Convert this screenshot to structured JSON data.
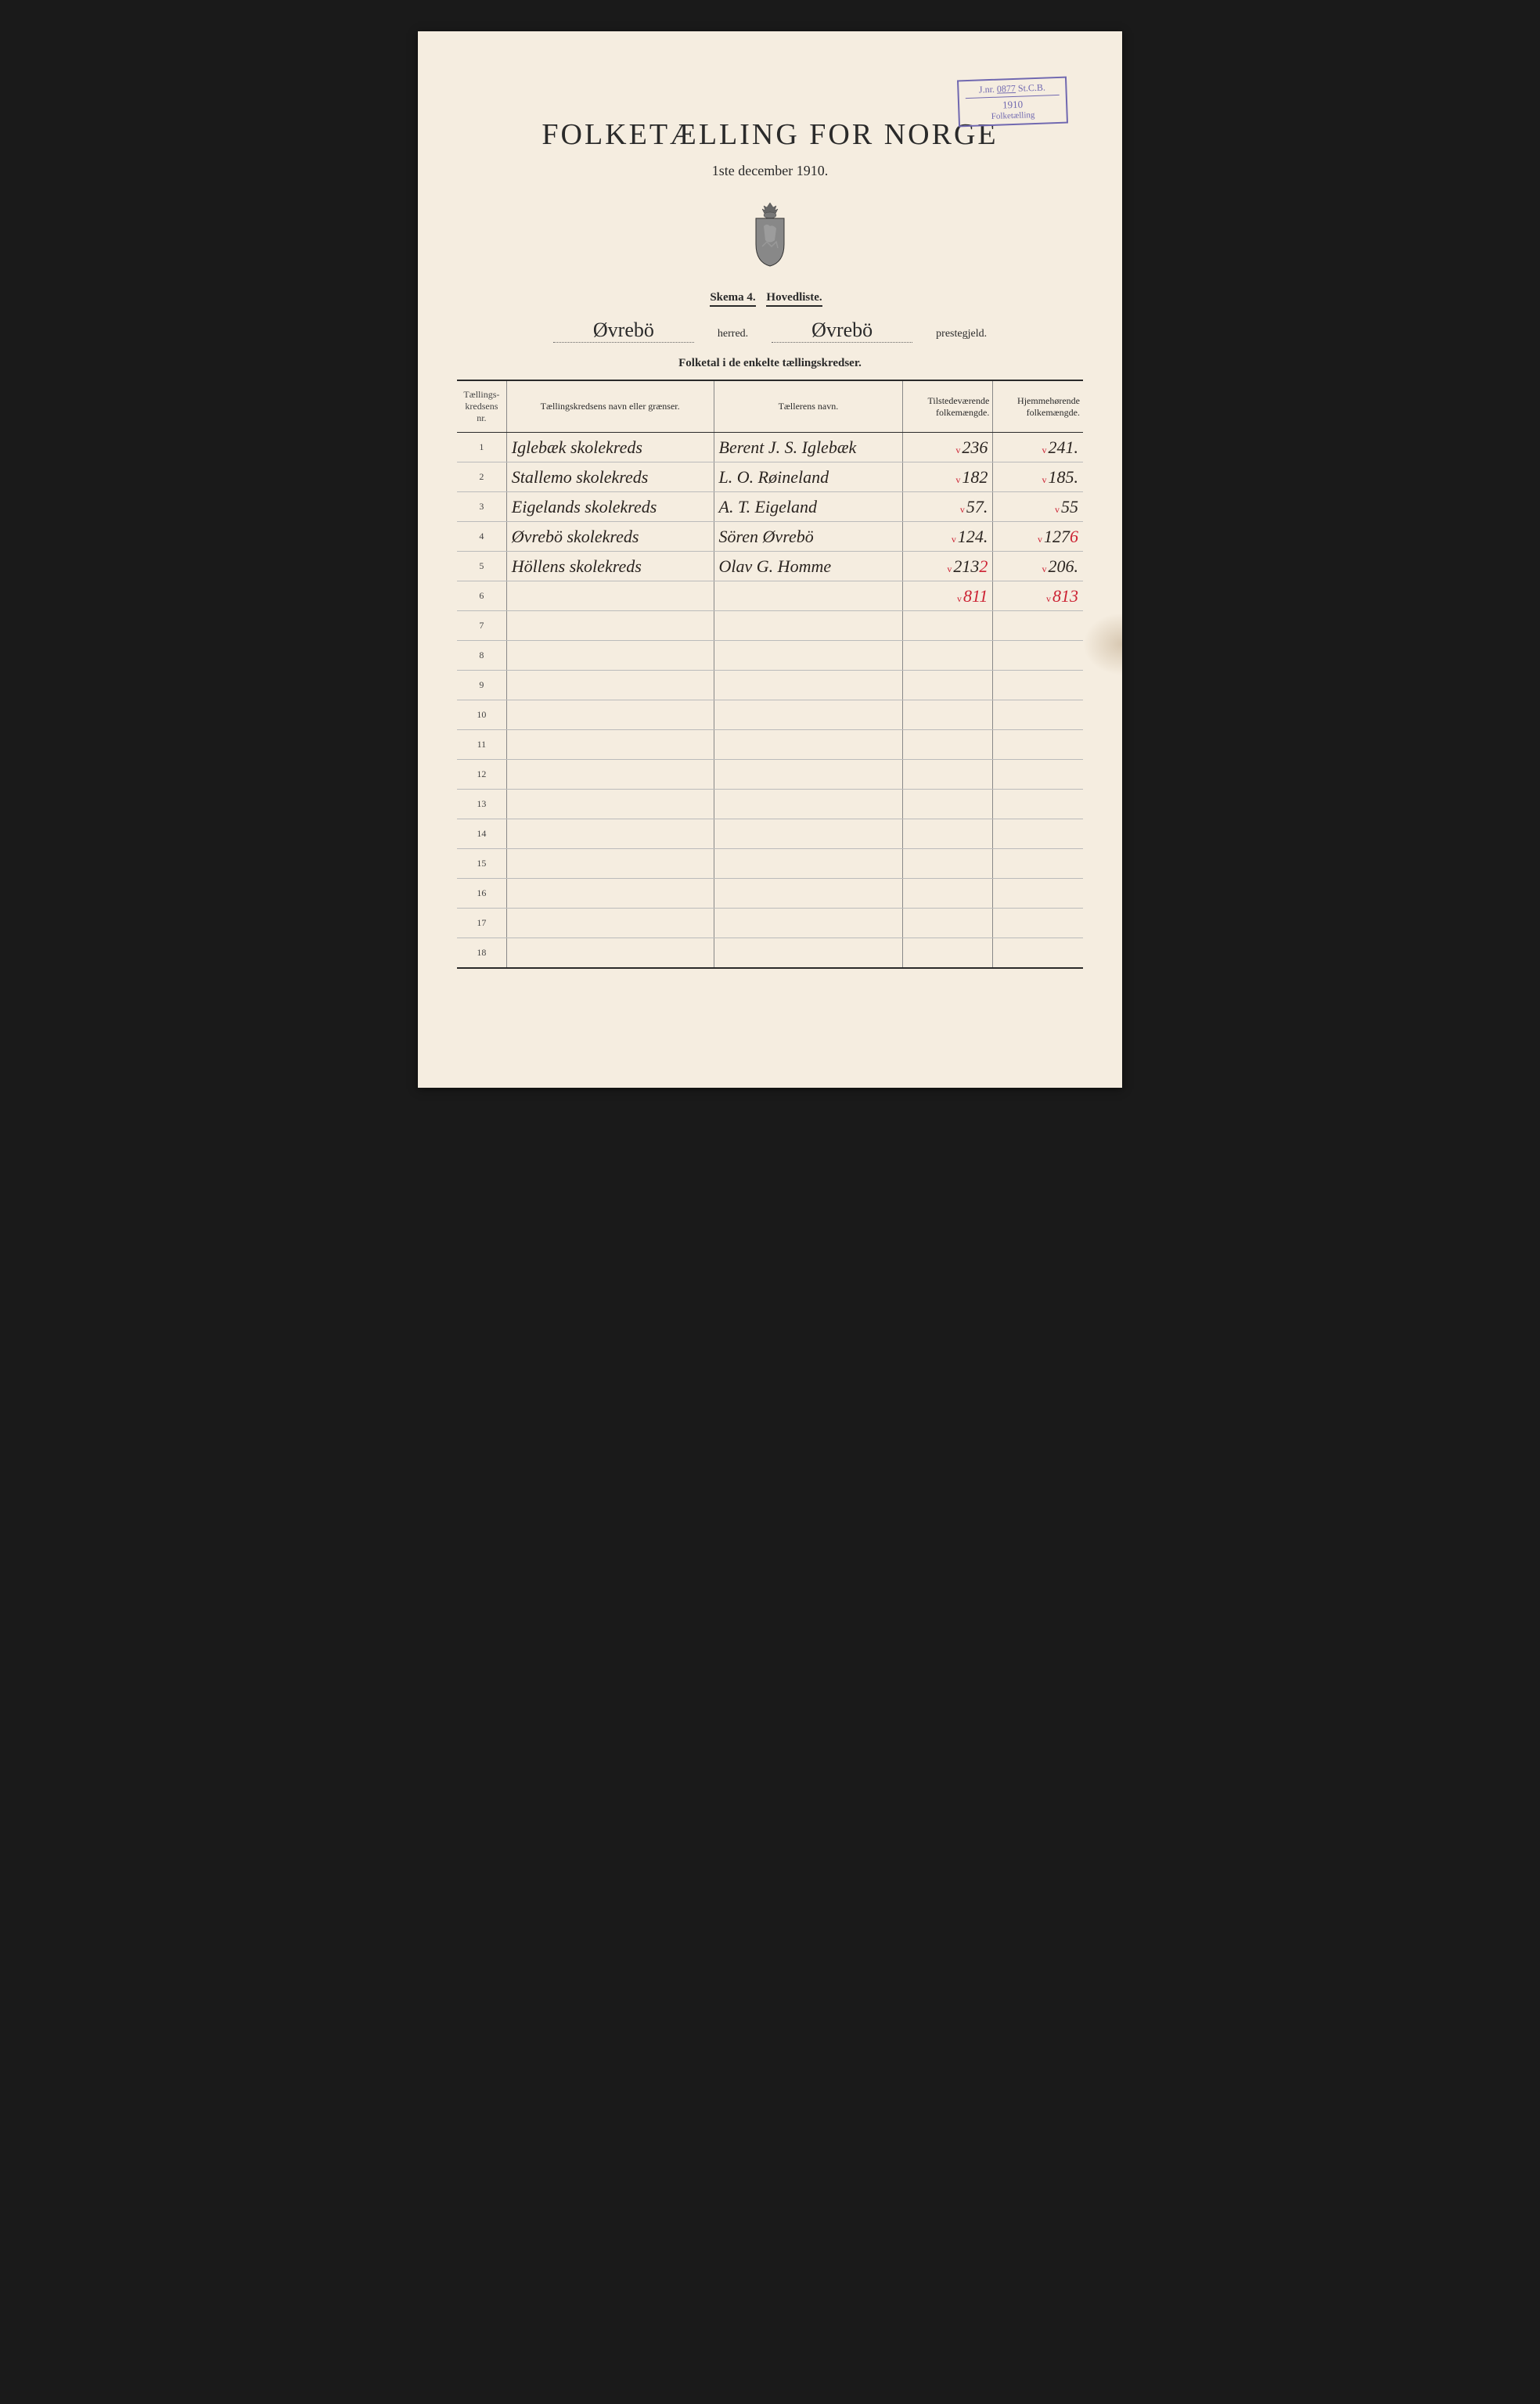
{
  "stamp": {
    "line1_left": "J.nr.",
    "line1_num": "0877",
    "line1_right": "St.C.B.",
    "year": "1910",
    "line3": "Folketælling"
  },
  "title": "FOLKETÆLLING FOR NORGE",
  "subtitle": "1ste december 1910.",
  "skema_label": "Skema 4.",
  "skema_type": "Hovedliste.",
  "herred_value": "Øvrebö",
  "herred_label": "herred.",
  "prestegjeld_value": "Øvrebö",
  "prestegjeld_label": "prestegjeld.",
  "section_title": "Folketal i de enkelte tællingskredser.",
  "columns": {
    "nr": "Tællings-\nkredsens nr.",
    "name": "Tællingskredsens navn eller grænser.",
    "enum": "Tællerens navn.",
    "pop_present": "Tilstedeværende\nfolkemængde.",
    "pop_resident": "Hjemmehørende\nfolkemængde."
  },
  "rows": [
    {
      "nr": "1",
      "name": "Iglebæk skolekreds",
      "enumerator": "Berent J. S. Iglebæk",
      "present": "236",
      "resident": "241.",
      "pres_overwrite": "",
      "res_overwrite": ""
    },
    {
      "nr": "2",
      "name": "Stallemo skolekreds",
      "enumerator": "L. O. Røineland",
      "present": "182",
      "resident": "185.",
      "pres_overwrite": "",
      "res_overwrite": ""
    },
    {
      "nr": "3",
      "name": "Eigelands skolekreds",
      "enumerator": "A. T. Eigeland",
      "present": "57.",
      "resident": "55",
      "pres_overwrite": "",
      "res_overwrite": ""
    },
    {
      "nr": "4",
      "name": "Øvrebö skolekreds",
      "enumerator": "Sören Øvrebö",
      "present": "124.",
      "resident": "127",
      "pres_overwrite": "",
      "res_overwrite": "6"
    },
    {
      "nr": "5",
      "name": "Höllens skolekreds",
      "enumerator": "Olav G. Homme",
      "present": "213",
      "resident": "206.",
      "pres_overwrite": "2",
      "res_overwrite": ""
    }
  ],
  "totals": {
    "nr": "6",
    "present": "811",
    "resident": "813"
  },
  "empty_rows": [
    "7",
    "8",
    "9",
    "10",
    "11",
    "12",
    "13",
    "14",
    "15",
    "16",
    "17",
    "18"
  ],
  "colors": {
    "page_bg": "#f5ede0",
    "outer_bg": "#1a1a1a",
    "stamp": "#7068b0",
    "ink": "#2a2a2a",
    "handwriting": "#2a2420",
    "red": "#c23"
  }
}
